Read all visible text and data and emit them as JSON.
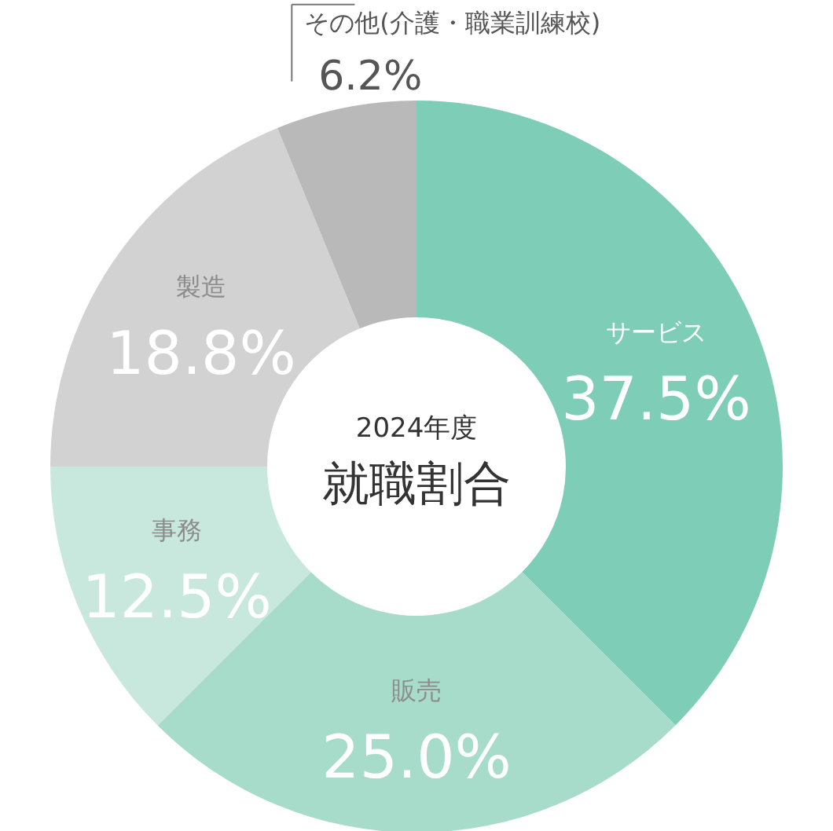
{
  "chart_data": {
    "type": "donut",
    "title": "就職割合",
    "subtitle": "2024年度",
    "categories": [
      "サービス",
      "販売",
      "事務",
      "製造",
      "その他(介護・職業訓練校)"
    ],
    "values": [
      37.5,
      25.0,
      12.5,
      18.8,
      6.2
    ],
    "colors": [
      "#7ecdb6",
      "#a6dcc9",
      "#c8e8dd",
      "#d2d2d2",
      "#b9b9b9"
    ],
    "data_labels": true,
    "value_labels": [
      "37.5%",
      "25.0%",
      "12.5%",
      "18.8%",
      "6.2%"
    ]
  }
}
